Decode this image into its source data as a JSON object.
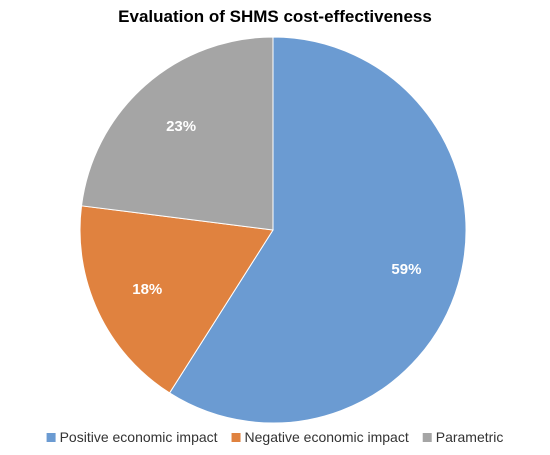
{
  "chart_data": {
    "type": "pie",
    "title": "Evaluation of SHMS cost-effectiveness",
    "legend_position": "bottom",
    "start_angle_deg": 0,
    "direction": "clockwise",
    "slices": [
      {
        "name": "Positive economic impact",
        "value": 59,
        "label": "59%",
        "color": "#6b9bd2"
      },
      {
        "name": "Negative economic impact",
        "value": 18,
        "label": "18%",
        "color": "#e0823f"
      },
      {
        "name": "Parametric",
        "value": 23,
        "label": "23%",
        "color": "#a5a5a5"
      }
    ]
  }
}
